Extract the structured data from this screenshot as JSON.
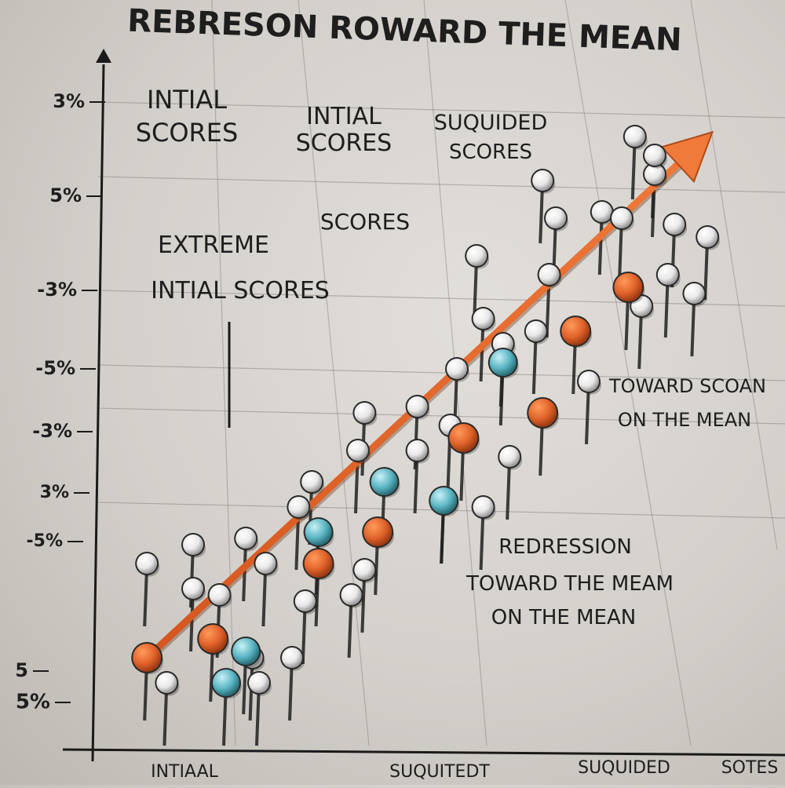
{
  "chart_data": {
    "type": "scatter",
    "title": "REBRESON ROWARD THE MEAN",
    "xlabel": "",
    "ylabel": "",
    "grid": true,
    "y_tick_labels": [
      "3%",
      "5%",
      "-3%",
      "-5%",
      "-3%",
      "3%",
      "-5%",
      "5",
      "5%"
    ],
    "x_tick_labels": [
      "INTIAAL",
      "SUQUITEDT",
      "SUQUIDED",
      "SOTES"
    ],
    "annotations": [
      {
        "id": "a1",
        "text": "INTIAL"
      },
      {
        "id": "a2",
        "text": "SCORES"
      },
      {
        "id": "a3",
        "text": "INTIAL"
      },
      {
        "id": "a4",
        "text": "SCORES"
      },
      {
        "id": "a5",
        "text": "SUQUIDED"
      },
      {
        "id": "a6",
        "text": "SCORES"
      },
      {
        "id": "a7",
        "text": "SCORES"
      },
      {
        "id": "a8",
        "text": "EXTREME"
      },
      {
        "id": "a9",
        "text": "INTIAL SCORES"
      },
      {
        "id": "a10",
        "text": "TOWARD SCOAN"
      },
      {
        "id": "a11",
        "text": "ON THE MEAN"
      },
      {
        "id": "a12",
        "text": "REDRESSION"
      },
      {
        "id": "a13",
        "text": "TOWARD THE MEAM"
      },
      {
        "id": "a14",
        "text": "ON THE MEAN"
      }
    ],
    "series": [
      {
        "role": "regression-points",
        "color": "#e0632a",
        "points": [
          [
            0.8,
            1.4
          ],
          [
            1.8,
            1.7
          ],
          [
            3.4,
            2.9
          ],
          [
            4.3,
            3.4
          ],
          [
            5.6,
            4.9
          ],
          [
            6.8,
            5.3
          ],
          [
            7.3,
            6.6
          ],
          [
            8.1,
            7.3
          ]
        ]
      },
      {
        "role": "initial-scores",
        "color": "#f0f0f0",
        "points": [
          [
            0.8,
            2.9
          ],
          [
            1.1,
            1.0
          ],
          [
            1.5,
            3.2
          ],
          [
            1.5,
            2.5
          ],
          [
            1.9,
            2.4
          ],
          [
            2.3,
            3.3
          ],
          [
            2.6,
            2.9
          ],
          [
            2.4,
            1.4
          ],
          [
            2.5,
            1.0
          ],
          [
            3.1,
            3.8
          ],
          [
            3.3,
            4.2
          ],
          [
            3.2,
            2.3
          ],
          [
            3.0,
            1.4
          ],
          [
            3.9,
            2.4
          ],
          [
            4.1,
            2.8
          ],
          [
            4.0,
            4.7
          ],
          [
            4.1,
            5.3
          ],
          [
            4.9,
            4.7
          ],
          [
            4.9,
            5.4
          ],
          [
            5.4,
            5.1
          ],
          [
            5.5,
            6.0
          ],
          [
            5.3,
            3.9
          ],
          [
            5.9,
            3.8
          ],
          [
            6.3,
            4.6
          ],
          [
            5.8,
            7.8
          ],
          [
            5.9,
            6.8
          ],
          [
            6.2,
            6.4
          ],
          [
            6.7,
            6.6
          ],
          [
            6.9,
            7.5
          ],
          [
            7.5,
            5.8
          ],
          [
            7.0,
            8.4
          ],
          [
            6.8,
            9.0
          ],
          [
            7.7,
            8.5
          ],
          [
            8.0,
            8.4
          ],
          [
            8.3,
            7.0
          ],
          [
            8.5,
            9.1
          ],
          [
            8.8,
            8.3
          ],
          [
            8.7,
            7.5
          ],
          [
            9.1,
            7.2
          ],
          [
            9.3,
            8.1
          ],
          [
            8.2,
            9.7
          ],
          [
            8.5,
            9.4
          ]
        ]
      },
      {
        "role": "highlighted",
        "color": "#5bb6c4",
        "points": [
          [
            2.0,
            1.0
          ],
          [
            2.3,
            1.5
          ],
          [
            3.4,
            3.4
          ],
          [
            4.4,
            4.2
          ],
          [
            5.3,
            3.9
          ],
          [
            6.2,
            6.1
          ]
        ]
      }
    ],
    "trend_line": {
      "x": [
        0.8,
        9.2
      ],
      "y": [
        1.4,
        9.6
      ]
    },
    "xlim": [
      0,
      10
    ],
    "ylim": [
      0,
      10
    ]
  }
}
